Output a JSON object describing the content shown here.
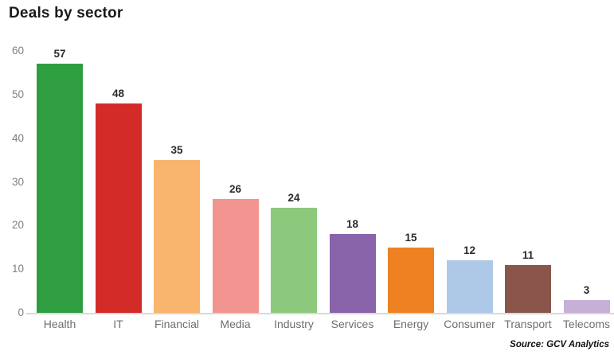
{
  "title": "Deals by sector",
  "source_note": "Source: GCV Analytics",
  "chart_data": {
    "type": "bar",
    "title": "Deals by sector",
    "categories": [
      "Health",
      "IT",
      "Financial",
      "Media",
      "Industry",
      "Services",
      "Energy",
      "Consumer",
      "Transport",
      "Telecoms"
    ],
    "values": [
      57,
      48,
      35,
      26,
      24,
      18,
      15,
      12,
      11,
      3
    ],
    "bar_colors": [
      "#2f9e41",
      "#d32b28",
      "#f9b56d",
      "#f2948f",
      "#8dc97c",
      "#8a64ab",
      "#ee8122",
      "#aec9e8",
      "#8a564c",
      "#c7afd7"
    ],
    "data_labels": [
      57,
      48,
      35,
      26,
      24,
      18,
      15,
      12,
      11,
      3
    ],
    "xlabel": "",
    "ylabel": "",
    "ylim": [
      0,
      60
    ],
    "yticks": [
      0,
      10,
      20,
      30,
      40,
      50,
      60
    ],
    "grid": false,
    "legend": "none",
    "source": "Source: GCV Analytics"
  },
  "colors": {
    "background": "#ffffff",
    "axis_line": "#d9d9d9",
    "tick_label": "#7f7f7f",
    "category_label": "#6e6e6e",
    "value_label": "#2b2b2b",
    "title": "#1a1a1a",
    "source": "#101010"
  }
}
